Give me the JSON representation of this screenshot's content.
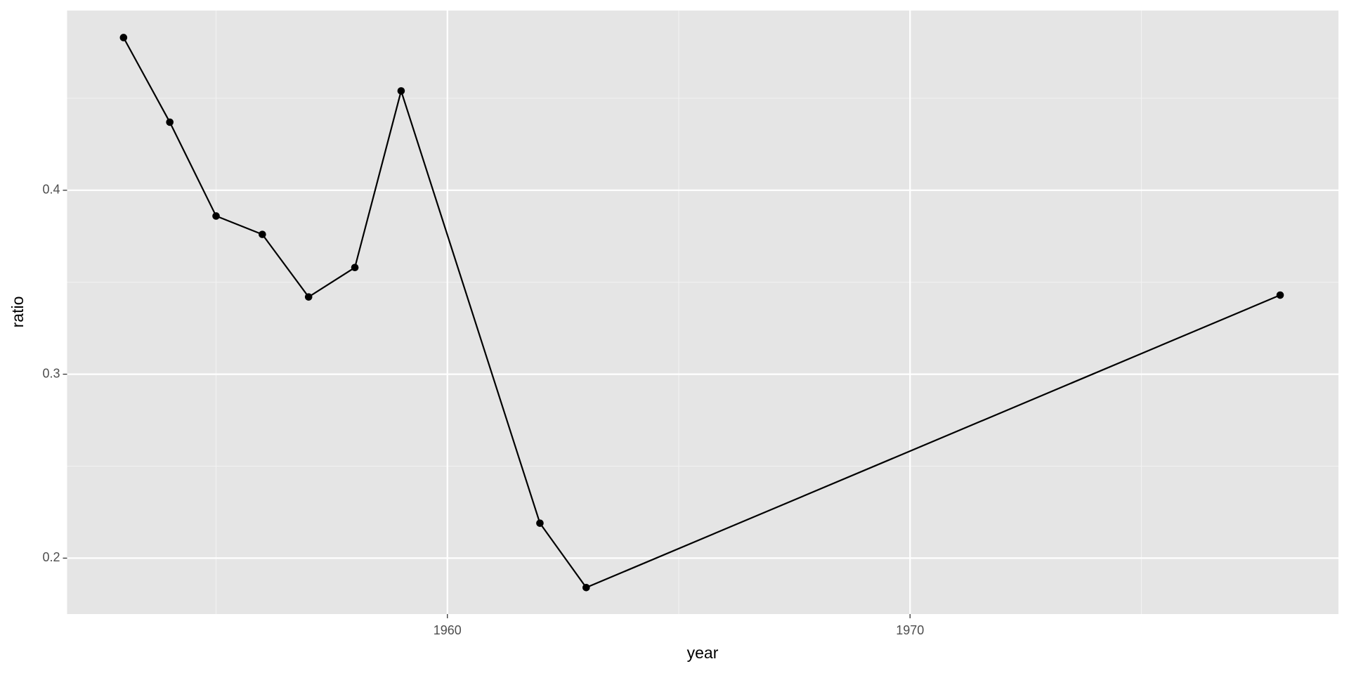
{
  "chart_data": {
    "type": "line",
    "x_label": "year",
    "y_label": "ratio",
    "x": [
      1953,
      1954,
      1955,
      1956,
      1957,
      1958,
      1959,
      1962,
      1963,
      1978
    ],
    "series": [
      {
        "name": "ratio",
        "color": "#000000",
        "values": [
          0.483,
          0.437,
          0.386,
          0.376,
          0.342,
          0.358,
          0.454,
          0.219,
          0.184,
          0.343
        ]
      }
    ],
    "xlim": [
      1951.78,
      1979.26
    ],
    "ylim": [
      0.1696,
      0.4977
    ],
    "xticks": [
      1960,
      1970
    ],
    "yticks": [
      0.2,
      0.3,
      0.4
    ],
    "grid": true,
    "markers": true
  }
}
